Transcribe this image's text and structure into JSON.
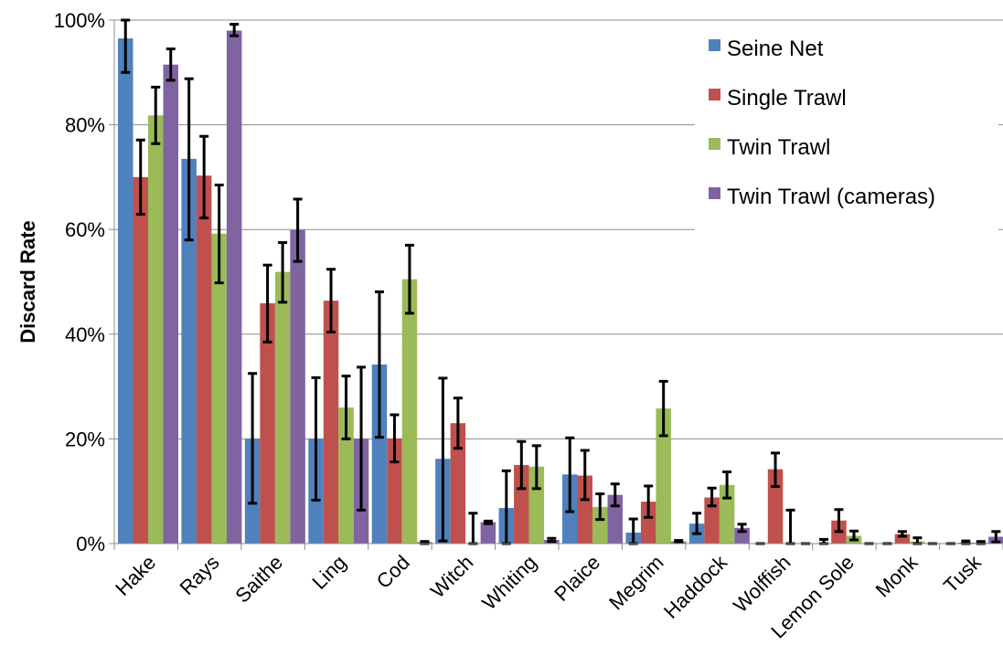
{
  "chart_data": {
    "type": "bar",
    "title": "",
    "xlabel": "",
    "ylabel": "Discard Rate",
    "ylim": [
      0,
      100
    ],
    "yticks": [
      "0%",
      "20%",
      "40%",
      "60%",
      "80%",
      "100%"
    ],
    "grid": "horizontal",
    "legend_position": "top-right",
    "categories": [
      "Hake",
      "Rays",
      "Saithe",
      "Ling",
      "Cod",
      "Witch",
      "Whiting",
      "Plaice",
      "Megrim",
      "Haddock",
      "Wolffish",
      "Lemon Sole",
      "Monk",
      "Tusk"
    ],
    "series": [
      {
        "name": "Seine Net",
        "color": "#4F81BD",
        "values": [
          96.5,
          73.5,
          20,
          20,
          34.2,
          16.2,
          6.8,
          13.2,
          2.1,
          3.8,
          0.1,
          0.1,
          0.1,
          0.1
        ],
        "error": [
          [
            90,
            100
          ],
          [
            58,
            88.8
          ],
          [
            7.7,
            32.5
          ],
          [
            8.3,
            31.7
          ],
          [
            20.3,
            48.1
          ],
          [
            0.5,
            31.6
          ],
          [
            0,
            13.9
          ],
          [
            6.1,
            20.2
          ],
          [
            0,
            4.7
          ],
          [
            1.9,
            5.8
          ],
          [
            0,
            0
          ],
          [
            0,
            0.8
          ],
          [
            0,
            0
          ],
          [
            0,
            0
          ]
        ]
      },
      {
        "name": "Single Trawl",
        "color": "#C0504D",
        "values": [
          70,
          70.3,
          45.9,
          46.4,
          20.1,
          23,
          15,
          13,
          8,
          8.8,
          14.2,
          4.4,
          1.8,
          0.2
        ],
        "error": [
          [
            62.9,
            77.1
          ],
          [
            62.2,
            77.8
          ],
          [
            38.5,
            53.2
          ],
          [
            40.4,
            52.4
          ],
          [
            15.6,
            24.6
          ],
          [
            18.2,
            27.8
          ],
          [
            10.5,
            19.5
          ],
          [
            8.4,
            17.8
          ],
          [
            5,
            11
          ],
          [
            7.2,
            10.6
          ],
          [
            10.9,
            17.3
          ],
          [
            2.3,
            6.5
          ],
          [
            1.4,
            2.3
          ],
          [
            0,
            0.5
          ]
        ]
      },
      {
        "name": "Twin Trawl",
        "color": "#9BBB59",
        "values": [
          81.8,
          59.2,
          51.9,
          26,
          50.5,
          0.1,
          14.7,
          7,
          25.8,
          11.2,
          0.1,
          1.5,
          0.4,
          0.2
        ],
        "error": [
          [
            76.4,
            87.2
          ],
          [
            49.8,
            68.5
          ],
          [
            46.1,
            57.5
          ],
          [
            20,
            32
          ],
          [
            44,
            57
          ],
          [
            0,
            5.8
          ],
          [
            10.5,
            18.7
          ],
          [
            4.6,
            9.5
          ],
          [
            20.6,
            31
          ],
          [
            8.7,
            13.7
          ],
          [
            0,
            6.4
          ],
          [
            0.7,
            2.4
          ],
          [
            0,
            1.1
          ],
          [
            0,
            0.4
          ]
        ]
      },
      {
        "name": "Twin Trawl (cameras)",
        "color": "#8064A2",
        "values": [
          91.5,
          98,
          59.9,
          20,
          0.3,
          4.1,
          0.7,
          9.3,
          0.4,
          3,
          0.1,
          0.1,
          0.1,
          1.3
        ],
        "error": [
          [
            88.5,
            94.5
          ],
          [
            97,
            99.2
          ],
          [
            53.9,
            65.8
          ],
          [
            6.4,
            33.7
          ],
          [
            0,
            0.4
          ],
          [
            3.8,
            4.3
          ],
          [
            0.4,
            1
          ],
          [
            7.2,
            11.4
          ],
          [
            0.2,
            0.6
          ],
          [
            2.3,
            3.7
          ],
          [
            0,
            0
          ],
          [
            0,
            0
          ],
          [
            0,
            0
          ],
          [
            0.3,
            2.3
          ]
        ]
      }
    ]
  }
}
